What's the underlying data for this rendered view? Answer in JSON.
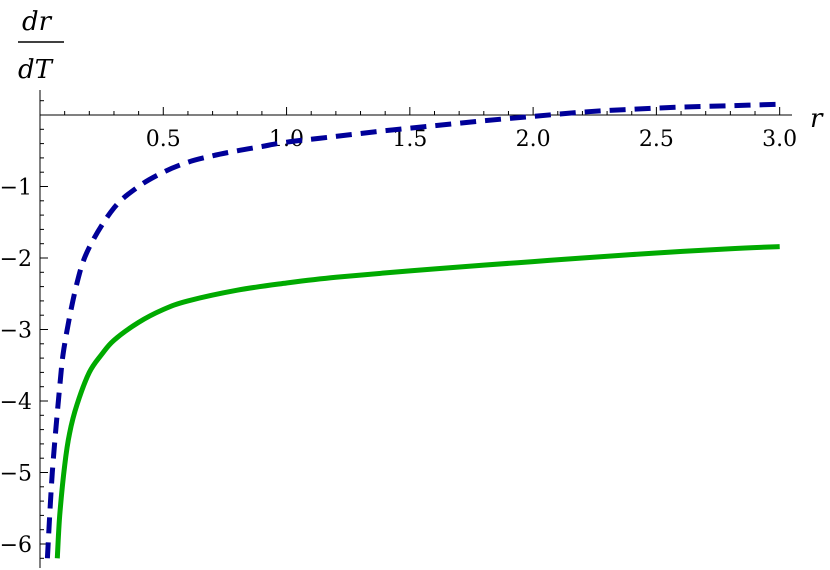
{
  "chart_data": {
    "type": "line",
    "title": "",
    "xlabel": "r",
    "ylabel": {
      "numerator": "dr",
      "denominator": "dT"
    },
    "xlim": [
      0,
      3.05
    ],
    "ylim": [
      -6.2,
      0.35
    ],
    "x_ticks": [
      "0.5",
      "1.0",
      "1.5",
      "2.0",
      "2.5",
      "3.0"
    ],
    "x_tick_values": [
      0.5,
      1.0,
      1.5,
      2.0,
      2.5,
      3.0
    ],
    "y_ticks": [
      "-1",
      "-2",
      "-3",
      "-4",
      "-5",
      "-6"
    ],
    "y_tick_values": [
      -1,
      -2,
      -3,
      -4,
      -5,
      -6
    ],
    "grid": false,
    "series": [
      {
        "style": "dashed",
        "color": "#000099",
        "x": [
          0.03,
          0.05,
          0.08,
          0.1,
          0.15,
          0.2,
          0.3,
          0.4,
          0.5,
          0.6,
          0.7,
          0.8,
          0.9,
          1.0,
          1.2,
          1.4,
          1.6,
          1.8,
          2.0,
          2.2,
          2.4,
          2.6,
          2.8,
          3.0
        ],
        "y": [
          -6.2,
          -5.0,
          -3.8,
          -3.2,
          -2.35,
          -1.85,
          -1.3,
          -1.0,
          -0.8,
          -0.66,
          -0.57,
          -0.5,
          -0.44,
          -0.38,
          -0.3,
          -0.22,
          -0.15,
          -0.08,
          -0.02,
          0.04,
          0.08,
          0.11,
          0.13,
          0.15
        ]
      },
      {
        "style": "solid",
        "color": "#00aa00",
        "x": [
          0.07,
          0.08,
          0.1,
          0.12,
          0.15,
          0.2,
          0.25,
          0.3,
          0.4,
          0.5,
          0.6,
          0.8,
          1.0,
          1.2,
          1.5,
          1.8,
          2.0,
          2.2,
          2.5,
          2.8,
          3.0
        ],
        "y": [
          -6.2,
          -5.6,
          -4.9,
          -4.45,
          -4.05,
          -3.6,
          -3.35,
          -3.15,
          -2.9,
          -2.72,
          -2.6,
          -2.45,
          -2.35,
          -2.27,
          -2.18,
          -2.1,
          -2.05,
          -2.0,
          -1.93,
          -1.87,
          -1.84
        ]
      }
    ]
  }
}
